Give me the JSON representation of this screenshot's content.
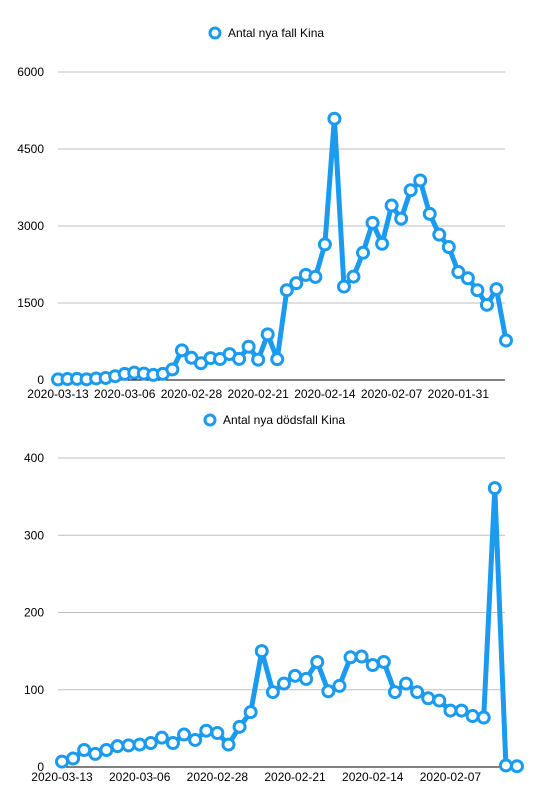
{
  "chart_data": [
    {
      "type": "line",
      "legend": "Antal nya fall Kina",
      "legend_position": "top-center",
      "color": "#1a9bf0",
      "ylim": [
        0,
        6000
      ],
      "yticks": [
        "0",
        "1500",
        "3000",
        "4500",
        "6000"
      ],
      "xtick_labels": [
        "2020-03-13",
        "2020-03-06",
        "2020-02-28",
        "2020-02-21",
        "2020-02-14",
        "2020-02-07",
        "2020-01-31"
      ],
      "xtick_index": [
        0,
        7,
        14,
        21,
        28,
        35,
        42
      ],
      "grid": true,
      "values": [
        11,
        19,
        21,
        13,
        30,
        40,
        74,
        119,
        143,
        125,
        99,
        120,
        205,
        578,
        433,
        327,
        427,
        409,
        505,
        411,
        648,
        397,
        889,
        406,
        1749,
        1886,
        2048,
        2009,
        2641,
        5090,
        1820,
        2015,
        2478,
        3062,
        2654,
        3399,
        3143,
        3697,
        3887,
        3235,
        2831,
        2590,
        2103,
        1982,
        1749,
        1464,
        1771,
        770
      ]
    },
    {
      "type": "line",
      "legend": "Antal nya dödsfall Kina",
      "legend_position": "top-center",
      "color": "#1a9bf0",
      "ylim": [
        0,
        400
      ],
      "yticks": [
        "0",
        "100",
        "200",
        "300",
        "400"
      ],
      "xtick_labels": [
        "2020-03-13",
        "2020-03-06",
        "2020-02-28",
        "2020-02-21",
        "2020-02-14",
        "2020-02-07"
      ],
      "xtick_index": [
        0,
        7,
        14,
        21,
        28,
        35
      ],
      "grid": true,
      "values": [
        7,
        11,
        22,
        17,
        22,
        27,
        28,
        29,
        31,
        38,
        31,
        42,
        35,
        47,
        44,
        29,
        52,
        71,
        150,
        97,
        108,
        118,
        114,
        136,
        98,
        105,
        142,
        143,
        132,
        136,
        97,
        108,
        97,
        89,
        86,
        73,
        73,
        66,
        64,
        361,
        2,
        1
      ]
    }
  ]
}
